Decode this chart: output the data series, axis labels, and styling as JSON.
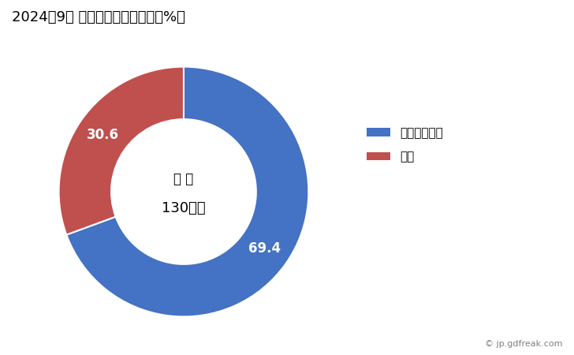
{
  "title": "2024年9月 輸出相手国のシェア（%）",
  "labels": [
    "インドネシア",
    "中国"
  ],
  "values": [
    69.4,
    30.6
  ],
  "colors": [
    "#4472C4",
    "#C0504D"
  ],
  "center_label_line1": "総 額",
  "center_label_line2": "130万円",
  "legend_labels": [
    "インドネシア",
    "中国"
  ],
  "watermark": "© jp.gdfreak.com",
  "background_color": "#FFFFFF",
  "donut_width": 0.42
}
